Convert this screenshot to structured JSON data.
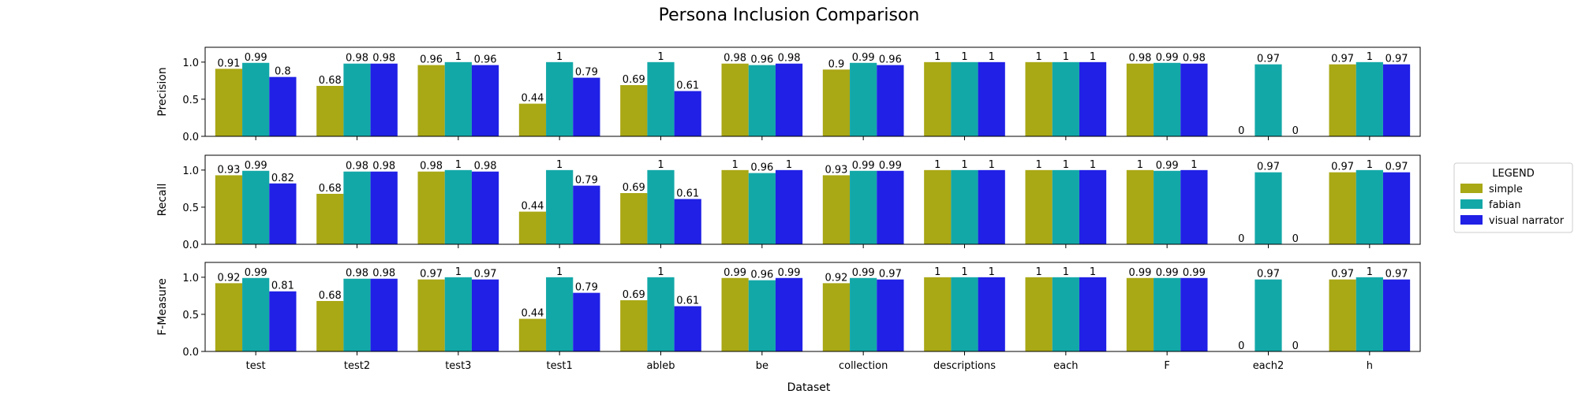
{
  "chart_data": {
    "type": "bar",
    "title": "Persona Inclusion Comparison",
    "xlabel": "Dataset",
    "categories": [
      "test",
      "test2",
      "test3",
      "test1",
      "ableb",
      "be",
      "collection",
      "descriptions",
      "each",
      "F",
      "each2",
      "h"
    ],
    "ylim": [
      0,
      1.2
    ],
    "yticks": [
      0.0,
      0.5,
      1.0
    ],
    "grid": false,
    "legend": {
      "title": "LEGEND",
      "placement": "right",
      "entries": [
        "simple",
        "fabian",
        "visual narrator"
      ]
    },
    "series_colors": [
      "#a9a815",
      "#13a8a8",
      "#2020e6"
    ],
    "subplots": [
      {
        "ylabel": "Precision",
        "series": [
          {
            "name": "simple",
            "values": [
              0.91,
              0.68,
              0.96,
              0.44,
              0.69,
              0.98,
              0.9,
              1,
              1,
              0.98,
              0,
              0.97
            ]
          },
          {
            "name": "fabian",
            "values": [
              0.99,
              0.98,
              1,
              1,
              1,
              0.96,
              0.99,
              1,
              1,
              0.99,
              0.97,
              1
            ]
          },
          {
            "name": "visual narrator",
            "values": [
              0.8,
              0.98,
              0.96,
              0.79,
              0.61,
              0.98,
              0.96,
              1,
              1,
              0.98,
              0,
              0.97
            ]
          }
        ]
      },
      {
        "ylabel": "Recall",
        "series": [
          {
            "name": "simple",
            "values": [
              0.93,
              0.68,
              0.98,
              0.44,
              0.69,
              1,
              0.93,
              1,
              1,
              1,
              0,
              0.97
            ]
          },
          {
            "name": "fabian",
            "values": [
              0.99,
              0.98,
              1,
              1,
              1,
              0.96,
              0.99,
              1,
              1,
              0.99,
              0.97,
              1
            ]
          },
          {
            "name": "visual narrator",
            "values": [
              0.82,
              0.98,
              0.98,
              0.79,
              0.61,
              1,
              0.99,
              1,
              1,
              1,
              0,
              0.97
            ]
          }
        ]
      },
      {
        "ylabel": "F-Measure",
        "series": [
          {
            "name": "simple",
            "values": [
              0.92,
              0.68,
              0.97,
              0.44,
              0.69,
              0.99,
              0.92,
              1,
              1,
              0.99,
              0,
              0.97
            ]
          },
          {
            "name": "fabian",
            "values": [
              0.99,
              0.98,
              1,
              1,
              1,
              0.96,
              0.99,
              1,
              1,
              0.99,
              0.97,
              1
            ]
          },
          {
            "name": "visual narrator",
            "values": [
              0.81,
              0.98,
              0.97,
              0.79,
              0.61,
              0.99,
              0.97,
              1,
              1,
              0.99,
              0,
              0.97
            ]
          }
        ]
      }
    ]
  }
}
